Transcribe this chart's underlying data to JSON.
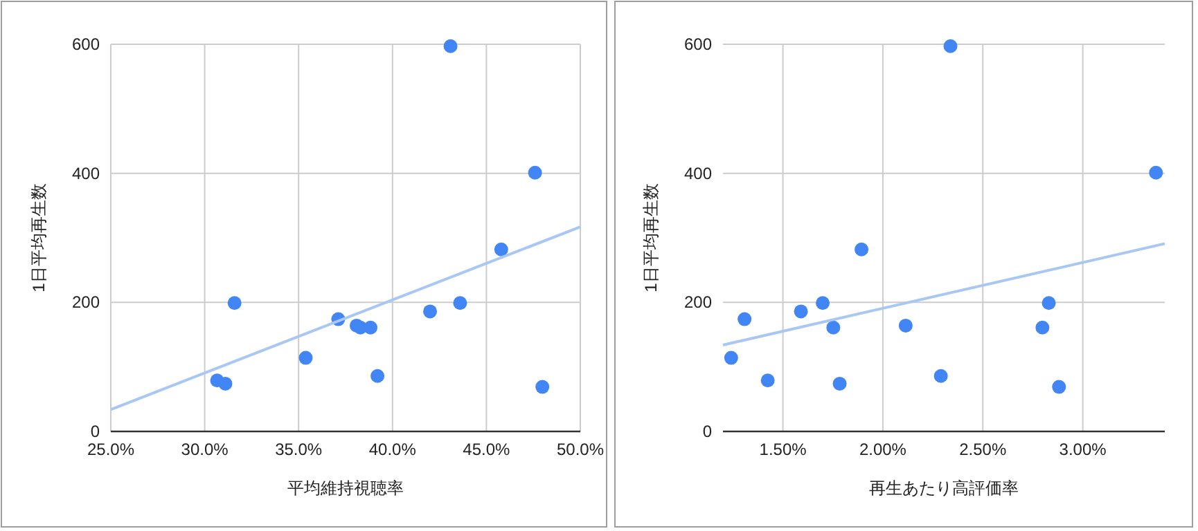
{
  "chart_data": [
    {
      "type": "scatter",
      "xlabel": "平均維持視聴率",
      "ylabel": "1日平均再生数",
      "xlim": [
        25,
        50
      ],
      "ylim": [
        0,
        600
      ],
      "xticks": [
        {
          "value": 25,
          "label": "25.0%"
        },
        {
          "value": 30,
          "label": "30.0%"
        },
        {
          "value": 35,
          "label": "35.0%"
        },
        {
          "value": 40,
          "label": "40.0%"
        },
        {
          "value": 45,
          "label": "45.0%"
        },
        {
          "value": 50,
          "label": "50.0%"
        }
      ],
      "yticks": [
        0,
        200,
        400,
        600
      ],
      "grid": true,
      "series": [
        {
          "type": "scatter",
          "marker": "circle",
          "color": "#4285f4",
          "x": [
            30.66,
            31.1,
            31.59,
            35.38,
            37.11,
            38.09,
            38.29,
            38.83,
            39.2,
            42.0,
            43.09,
            43.6,
            45.79,
            47.59,
            47.98
          ],
          "values": [
            79,
            74,
            199,
            114,
            174,
            164,
            161,
            161,
            86,
            186,
            597,
            199,
            282,
            401,
            69
          ]
        },
        {
          "type": "line",
          "marker": "none",
          "color": "#a9c7f3",
          "x": [
            25,
            50
          ],
          "values": [
            34,
            317
          ]
        }
      ]
    },
    {
      "type": "scatter",
      "xlabel": "再生あたり高評価率",
      "ylabel": "1日平均再生数",
      "xlim": [
        1.2,
        3.41
      ],
      "ylim": [
        0,
        600
      ],
      "xticks": [
        {
          "value": 1.5,
          "label": "1.50%"
        },
        {
          "value": 2,
          "label": "2.00%"
        },
        {
          "value": 2.5,
          "label": "2.50%"
        },
        {
          "value": 3,
          "label": "3.00%"
        }
      ],
      "yticks": [
        0,
        200,
        400,
        600
      ],
      "grid": true,
      "series": [
        {
          "type": "scatter",
          "marker": "circle",
          "color": "#4285f4",
          "x": [
            1.241,
            1.308,
            1.424,
            1.59,
            1.699,
            1.752,
            1.784,
            1.893,
            2.114,
            2.29,
            2.338,
            2.798,
            2.83,
            2.881,
            3.366
          ],
          "values": [
            114,
            174,
            79,
            186,
            199,
            161,
            74,
            282,
            164,
            86,
            597,
            161,
            199,
            69,
            401
          ]
        },
        {
          "type": "line",
          "marker": "none",
          "color": "#a9c7f3",
          "x": [
            1.2,
            3.41
          ],
          "values": [
            134,
            291
          ]
        }
      ]
    }
  ]
}
